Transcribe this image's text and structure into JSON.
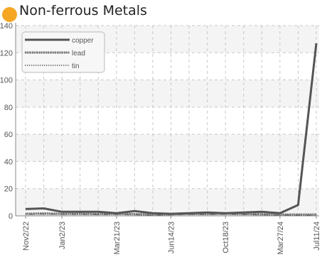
{
  "title": "Non-ferrous Metals",
  "colors": {
    "accent_dot": "#f5a623",
    "series": "#555555",
    "grid": "#c8c8c8",
    "band": "#f4f4f4"
  },
  "chart_data": {
    "type": "line",
    "title": "Non-ferrous Metals",
    "xlabel": "",
    "ylabel": "",
    "ylim": [
      0,
      140
    ],
    "yticks": [
      0,
      20,
      40,
      60,
      80,
      100,
      120,
      140
    ],
    "ytick_labels": [
      "0",
      "20",
      "40",
      "60",
      "80",
      "100",
      "120",
      "140"
    ],
    "x_tick_labels": [
      "Nov2/22",
      "Jan2/23",
      "Mar21/23",
      "Jun14/23",
      "Oct18/23",
      "Mar27/24",
      "Jul11/24"
    ],
    "grid": true,
    "legend_position": "top-left",
    "x": [
      "Nov2/22",
      "Dec1/22",
      "Jan2/23",
      "Feb1/23",
      "Mar1/23",
      "Mar21/23",
      "Apr20/23",
      "May20/23",
      "Jun14/23",
      "Jul20/23",
      "Aug25/23",
      "Oct18/23",
      "Dec10/23",
      "Feb1/24",
      "Mar27/24",
      "May10/24",
      "Jul11/24"
    ],
    "series": [
      {
        "name": "copper",
        "style": "solid",
        "values": [
          5,
          5.5,
          3,
          3,
          3,
          2,
          3.5,
          2,
          1.5,
          2,
          2.5,
          2,
          2.5,
          3,
          2,
          8,
          127
        ]
      },
      {
        "name": "lead",
        "style": "dense-dotted",
        "values": [
          1.5,
          1.8,
          1.5,
          1.5,
          1.3,
          1.5,
          1.3,
          1.0,
          1.2,
          1.5,
          1.3,
          1.5,
          1.3,
          1.2,
          1.0,
          1.0,
          1.0
        ]
      },
      {
        "name": "tin",
        "style": "light-dotted",
        "values": [
          1.0,
          1.2,
          1.0,
          1.2,
          1.0,
          1.0,
          0.8,
          0.5,
          0.8,
          1.0,
          1.0,
          1.2,
          1.0,
          0.8,
          0.5,
          0.5,
          0.5
        ]
      }
    ]
  }
}
